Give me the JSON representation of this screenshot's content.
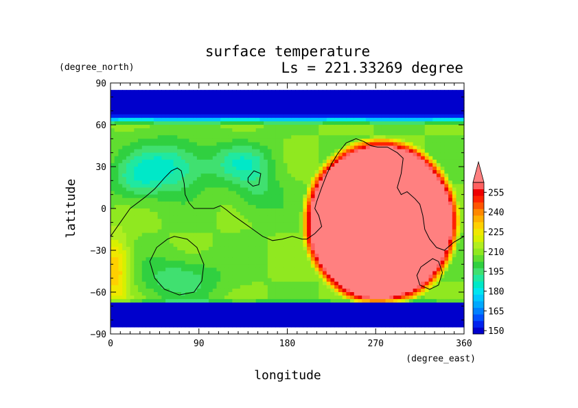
{
  "chart_data": {
    "type": "heatmap",
    "title": "surface temperature",
    "subtitle": "Ls = 221.33269 degree",
    "xlabel": "longitude",
    "ylabel": "latitude",
    "x_units": "(degree_east)",
    "y_units": "(degree_north)",
    "xlim": [
      0,
      360
    ],
    "ylim": [
      -90,
      90
    ],
    "x_ticks": [
      "0",
      "90",
      "180",
      "270",
      "360"
    ],
    "y_ticks": [
      "90",
      "60",
      "30",
      "0",
      "−30",
      "−60",
      "−90"
    ],
    "x_tick_values": [
      0,
      90,
      180,
      270,
      360
    ],
    "y_tick_values": [
      90,
      60,
      30,
      0,
      -30,
      -60,
      -90
    ],
    "data_extent": {
      "lat_min": -85,
      "lat_max": 85
    },
    "colorbar": {
      "labels": [
        "150",
        "165",
        "180",
        "195",
        "210",
        "225",
        "240",
        "255"
      ],
      "label_values": [
        150,
        165,
        180,
        195,
        210,
        225,
        240,
        255
      ],
      "levels": [
        145,
        150,
        155,
        160,
        165,
        170,
        175,
        180,
        185,
        190,
        195,
        200,
        205,
        210,
        215,
        220,
        225,
        230,
        235,
        240,
        245,
        250,
        255,
        260
      ],
      "colors": [
        "#0000cc",
        "#0022ee",
        "#0050ff",
        "#0080ff",
        "#00a8ff",
        "#00c8ff",
        "#00e5f0",
        "#00e8c8",
        "#20e8a0",
        "#40e070",
        "#30d040",
        "#60dd30",
        "#90e820",
        "#b0ee20",
        "#d8f000",
        "#f0e800",
        "#ffd000",
        "#ffb000",
        "#ff8800",
        "#ff5500",
        "#ff2200",
        "#ee0000",
        "#ff6060"
      ],
      "over_color": "#ff8080",
      "extend": "max"
    },
    "fields": {
      "base_temperature": 205,
      "polar_cap_temperature": 140,
      "north_cap_boundary_lat": 60,
      "south_cap_boundary_lat": -66,
      "warm_region": {
        "lon_center": 275,
        "lat_center": -10,
        "lon_halfwidth": 82,
        "lat_halfwidth": 62,
        "peak_temperature": 290
      },
      "cool_patches": [
        {
          "lon": 60,
          "lat": 30,
          "amp": -22,
          "lon_width": 38,
          "lat_width": 18
        },
        {
          "lon": 135,
          "lat": 32,
          "amp": -18,
          "lon_width": 30,
          "lat_width": 14
        },
        {
          "lon": 25,
          "lat": 20,
          "amp": -12,
          "lon_width": 25,
          "lat_width": 15
        },
        {
          "lon": 150,
          "lat": 10,
          "amp": -10,
          "lon_width": 25,
          "lat_width": 15
        },
        {
          "lon": 70,
          "lat": -50,
          "amp": -14,
          "lon_width": 40,
          "lat_width": 15
        }
      ],
      "warm_patches": [
        {
          "lon": 5,
          "lat": -45,
          "amp": 25,
          "lon_width": 15,
          "lat_width": 25
        }
      ]
    },
    "contours": [
      {
        "name": "continent-outline",
        "closed": false,
        "points": [
          [
            0,
            -20
          ],
          [
            10,
            -10
          ],
          [
            20,
            0
          ],
          [
            35,
            8
          ],
          [
            45,
            14
          ],
          [
            55,
            22
          ],
          [
            62,
            27
          ],
          [
            68,
            29
          ],
          [
            72,
            27
          ],
          [
            75,
            18
          ],
          [
            76,
            10
          ],
          [
            80,
            4
          ],
          [
            85,
            0
          ],
          [
            95,
            0
          ],
          [
            105,
            0
          ],
          [
            112,
            2
          ],
          [
            118,
            -1
          ],
          [
            125,
            -5
          ],
          [
            135,
            -10
          ],
          [
            145,
            -15
          ],
          [
            155,
            -20
          ],
          [
            165,
            -23
          ],
          [
            175,
            -22
          ],
          [
            185,
            -20
          ],
          [
            195,
            -22
          ],
          [
            200,
            -22
          ],
          [
            208,
            -18
          ],
          [
            215,
            -13
          ],
          [
            212,
            -5
          ],
          [
            208,
            0
          ],
          [
            210,
            5
          ],
          [
            215,
            15
          ],
          [
            220,
            24
          ],
          [
            225,
            32
          ],
          [
            232,
            40
          ],
          [
            240,
            47
          ],
          [
            250,
            50
          ],
          [
            258,
            48
          ],
          [
            265,
            45
          ],
          [
            272,
            44
          ],
          [
            282,
            44
          ],
          [
            292,
            40
          ],
          [
            298,
            36
          ],
          [
            296,
            25
          ],
          [
            292,
            15
          ],
          [
            296,
            10
          ],
          [
            302,
            12
          ],
          [
            310,
            7
          ],
          [
            315,
            3
          ],
          [
            318,
            -5
          ],
          [
            320,
            -15
          ],
          [
            325,
            -22
          ],
          [
            332,
            -28
          ],
          [
            340,
            -30
          ],
          [
            350,
            -24
          ],
          [
            360,
            -20
          ]
        ]
      },
      {
        "name": "argyre-outline",
        "closed": true,
        "points": [
          [
            65,
            -20
          ],
          [
            78,
            -22
          ],
          [
            88,
            -28
          ],
          [
            95,
            -40
          ],
          [
            93,
            -52
          ],
          [
            85,
            -60
          ],
          [
            70,
            -62
          ],
          [
            55,
            -58
          ],
          [
            45,
            -50
          ],
          [
            40,
            -38
          ],
          [
            47,
            -28
          ],
          [
            58,
            -22
          ]
        ]
      },
      {
        "name": "island-outline",
        "closed": true,
        "points": [
          [
            140,
            22
          ],
          [
            146,
            27
          ],
          [
            153,
            25
          ],
          [
            151,
            17
          ],
          [
            145,
            16
          ],
          [
            140,
            19
          ]
        ]
      },
      {
        "name": "hellas-outline",
        "closed": true,
        "points": [
          [
            320,
            -40
          ],
          [
            328,
            -36
          ],
          [
            334,
            -38
          ],
          [
            338,
            -46
          ],
          [
            334,
            -55
          ],
          [
            325,
            -58
          ],
          [
            315,
            -55
          ],
          [
            312,
            -48
          ],
          [
            316,
            -42
          ]
        ]
      }
    ]
  }
}
